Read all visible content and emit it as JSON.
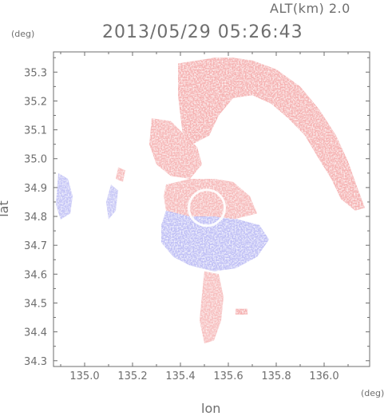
{
  "header": {
    "altitude_label": "ALT(km) 2.0",
    "timestamp": "2013/05/29 05:26:43",
    "y_unit": "(deg)",
    "x_unit": "(deg)"
  },
  "chart_data": {
    "type": "heatmap",
    "title": "2013/05/29 05:26:43",
    "xlabel": "lon",
    "ylabel": "lat",
    "x_unit": "(deg)",
    "y_unit": "(deg)",
    "xlim": [
      134.87,
      136.19
    ],
    "ylim": [
      34.28,
      35.37
    ],
    "x_ticks": [
      135.0,
      135.2,
      135.4,
      135.6,
      135.8,
      136.0
    ],
    "x_tick_labels": [
      "135.0",
      "135.2",
      "135.4",
      "135.6",
      "135.8",
      "136.0"
    ],
    "y_ticks": [
      34.3,
      34.4,
      34.5,
      34.6,
      34.7,
      34.8,
      34.9,
      35.0,
      35.1,
      35.2,
      35.3
    ],
    "y_tick_labels": [
      "34.3",
      "34.4",
      "34.5",
      "34.6",
      "34.7",
      "34.8",
      "34.9",
      "35.0",
      "35.1",
      "35.2",
      "35.3"
    ],
    "grid": false,
    "colors": {
      "positive": "#f4a7a7",
      "negative": "#b9b9f4",
      "neutral": "#ffffff",
      "axis": "#6e6e6e"
    },
    "regions": [
      {
        "sign": "positive",
        "polygon": [
          [
            135.39,
            35.33
          ],
          [
            135.47,
            35.34
          ],
          [
            135.54,
            35.35
          ],
          [
            135.62,
            35.35
          ],
          [
            135.7,
            35.34
          ],
          [
            135.8,
            35.31
          ],
          [
            135.9,
            35.25
          ],
          [
            135.98,
            35.17
          ],
          [
            136.05,
            35.08
          ],
          [
            136.1,
            34.99
          ],
          [
            136.13,
            34.92
          ],
          [
            136.17,
            34.83
          ],
          [
            136.13,
            34.82
          ],
          [
            136.07,
            34.86
          ],
          [
            136.03,
            34.93
          ],
          [
            135.97,
            35.01
          ],
          [
            135.92,
            35.08
          ],
          [
            135.85,
            35.14
          ],
          [
            135.78,
            35.19
          ],
          [
            135.7,
            35.22
          ],
          [
            135.62,
            35.21
          ],
          [
            135.56,
            35.15
          ],
          [
            135.52,
            35.08
          ],
          [
            135.45,
            35.05
          ],
          [
            135.41,
            35.08
          ],
          [
            135.4,
            35.15
          ],
          [
            135.39,
            35.22
          ]
        ],
        "intensity": 0.55
      },
      {
        "sign": "positive",
        "polygon": [
          [
            135.28,
            35.14
          ],
          [
            135.36,
            35.13
          ],
          [
            135.42,
            35.08
          ],
          [
            135.47,
            35.04
          ],
          [
            135.49,
            34.98
          ],
          [
            135.44,
            34.93
          ],
          [
            135.36,
            34.94
          ],
          [
            135.3,
            34.98
          ],
          [
            135.27,
            35.05
          ]
        ],
        "intensity": 0.45
      },
      {
        "sign": "positive",
        "polygon": [
          [
            135.34,
            34.91
          ],
          [
            135.44,
            34.93
          ],
          [
            135.54,
            34.93
          ],
          [
            135.62,
            34.92
          ],
          [
            135.69,
            34.87
          ],
          [
            135.72,
            34.81
          ],
          [
            135.62,
            34.79
          ],
          [
            135.52,
            34.8
          ],
          [
            135.42,
            34.8
          ],
          [
            135.34,
            34.82
          ],
          [
            135.33,
            34.87
          ]
        ],
        "intensity": 0.4
      },
      {
        "sign": "negative",
        "polygon": [
          [
            135.34,
            34.82
          ],
          [
            135.44,
            34.8
          ],
          [
            135.54,
            34.8
          ],
          [
            135.64,
            34.79
          ],
          [
            135.73,
            34.77
          ],
          [
            135.77,
            34.72
          ],
          [
            135.72,
            34.66
          ],
          [
            135.63,
            34.62
          ],
          [
            135.54,
            34.61
          ],
          [
            135.44,
            34.63
          ],
          [
            135.37,
            34.66
          ],
          [
            135.32,
            34.71
          ],
          [
            135.32,
            34.77
          ]
        ],
        "intensity": 0.6
      },
      {
        "sign": "negative",
        "polygon": [
          [
            134.89,
            34.95
          ],
          [
            134.93,
            34.93
          ],
          [
            134.95,
            34.87
          ],
          [
            134.94,
            34.81
          ],
          [
            134.9,
            34.79
          ],
          [
            134.88,
            34.84
          ]
        ],
        "intensity": 0.5
      },
      {
        "sign": "negative",
        "polygon": [
          [
            135.11,
            34.91
          ],
          [
            135.14,
            34.89
          ],
          [
            135.13,
            34.82
          ],
          [
            135.1,
            34.79
          ],
          [
            135.09,
            34.85
          ]
        ],
        "intensity": 0.45
      },
      {
        "sign": "positive",
        "polygon": [
          [
            135.14,
            34.97
          ],
          [
            135.17,
            34.96
          ],
          [
            135.16,
            34.92
          ],
          [
            135.13,
            34.93
          ]
        ],
        "intensity": 0.35
      },
      {
        "sign": "positive",
        "polygon": [
          [
            135.5,
            34.61
          ],
          [
            135.56,
            34.6
          ],
          [
            135.58,
            34.52
          ],
          [
            135.57,
            34.44
          ],
          [
            135.54,
            34.37
          ],
          [
            135.5,
            34.36
          ],
          [
            135.48,
            34.44
          ],
          [
            135.49,
            34.53
          ]
        ],
        "intensity": 0.3
      },
      {
        "sign": "positive",
        "polygon": [
          [
            135.63,
            34.48
          ],
          [
            135.68,
            34.48
          ],
          [
            135.68,
            34.46
          ],
          [
            135.63,
            34.46
          ]
        ],
        "intensity": 0.6
      }
    ],
    "ring": {
      "center": [
        135.51,
        34.83
      ],
      "radius_deg": 0.075
    }
  },
  "axes": {
    "x_label": "lon",
    "y_label": "lat"
  }
}
